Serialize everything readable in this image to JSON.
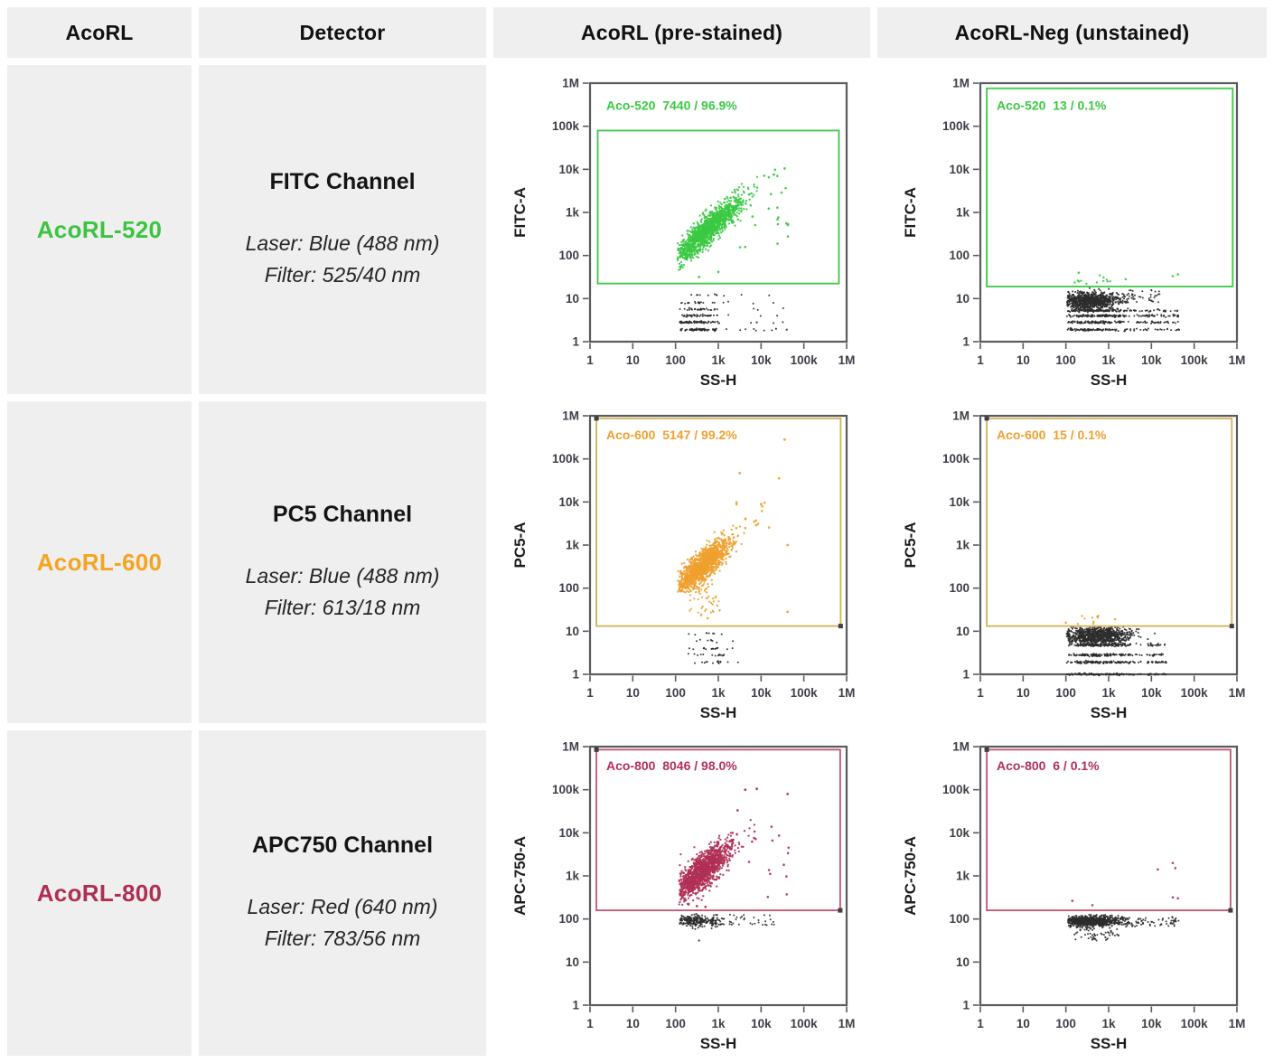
{
  "table": {
    "headers": [
      {
        "label": "AcoRL"
      },
      {
        "label": "Detector"
      },
      {
        "label": "AcoRL (pre-stained)"
      },
      {
        "label": "AcoRL-Neg (unstained)"
      }
    ],
    "rows": [
      {
        "name": "AcoRL-520",
        "color": "#3cc441",
        "channel": "FITC Channel",
        "laser": "Laser: Blue (488 nm)",
        "filter": "Filter: 525/40 nm"
      },
      {
        "name": "AcoRL-600",
        "color": "#f5a41f",
        "channel": "PC5 Channel",
        "laser": "Laser: Blue (488 nm)",
        "filter": "Filter: 613/18 nm"
      },
      {
        "name": "AcoRL-800",
        "color": "#ae2f54",
        "channel": "APC750 Channel",
        "laser": "Laser: Red (640 nm)",
        "filter": "Filter: 783/56 nm"
      }
    ]
  },
  "colors": {
    "green": "#3bc943",
    "orange": "#f0a02e",
    "gate_orange": "#d2b257",
    "crimson": "#b03056",
    "gate_crimson": "#c4546f",
    "black": "#2d2d2d",
    "plot_border": "#5a5b5e",
    "tick_text": "#3e3e48",
    "axis_title": "#1d1d1d",
    "cell_bg": "#efefef",
    "handle": "#3f3f3f"
  },
  "chart_data": [
    {
      "type": "scatter",
      "row": 0,
      "column": "pre-stained",
      "xlabel": "SS-H",
      "ylabel": "FITC-A",
      "scale": "log-log",
      "xlim": [
        1,
        1000000
      ],
      "ylim": [
        1,
        1000000
      ],
      "tick_labels": [
        "1",
        "10",
        "100",
        "1k",
        "10k",
        "100k",
        "1M"
      ],
      "gate": {
        "name": "Aco-520",
        "events": 7440,
        "percent": "96.9%",
        "text": "Aco-520  7440 / 96.9%",
        "color": "green",
        "label_color": "green",
        "handles": false,
        "x_log": [
          0.18,
          5.82
        ],
        "y_log": [
          1.35,
          4.9
        ],
        "label_pos_log": [
          0.38,
          5.38
        ]
      },
      "clusters": [
        {
          "type": "diag",
          "color": "green",
          "n": 1300,
          "cx": 2.75,
          "cy": 2.6,
          "sx": 0.4,
          "sy": 0.17,
          "slope": 0.88,
          "xmin": 2.05,
          "xmax": 4.05,
          "ymin": 1.5,
          "size": 1.15
        },
        {
          "type": "box",
          "color": "green",
          "n": 26,
          "x": [
            3.3,
            4.75
          ],
          "y": [
            2.0,
            4.05
          ],
          "size": 1.3
        },
        {
          "type": "points",
          "color": "green",
          "size": 1.4,
          "pts": [
            [
              4.55,
              4.02
            ],
            [
              4.3,
              3.88
            ],
            [
              3.0,
              1.62
            ],
            [
              2.55,
              1.5
            ]
          ]
        },
        {
          "type": "bands",
          "color": "black",
          "n": 260,
          "xc": 2.5,
          "xs": 0.3,
          "xmin": 2.1,
          "xmax": 3.5,
          "xtail": 4.55,
          "tailfrac": 0.07,
          "levels": [
            0.28,
            0.45,
            0.6,
            0.75,
            0.9,
            1.08
          ],
          "weights": [
            3,
            3,
            2.2,
            1.5,
            1,
            0.7
          ],
          "size": 1.0
        },
        {
          "type": "points",
          "color": "black",
          "size": 1.1,
          "pts": [
            [
              4.35,
              0.3
            ],
            [
              4.6,
              0.28
            ],
            [
              3.9,
              0.45
            ]
          ]
        }
      ]
    },
    {
      "type": "scatter",
      "row": 0,
      "column": "unstained",
      "xlabel": "SS-H",
      "ylabel": "FITC-A",
      "scale": "log-log",
      "xlim": [
        1,
        1000000
      ],
      "ylim": [
        1,
        1000000
      ],
      "tick_labels": [
        "1",
        "10",
        "100",
        "1k",
        "10k",
        "100k",
        "1M"
      ],
      "gate": {
        "name": "Aco-520",
        "events": 13,
        "percent": "0.1%",
        "text": "Aco-520  13 / 0.1%",
        "color": "green",
        "label_color": "green",
        "handles": false,
        "x_log": [
          0.15,
          5.9
        ],
        "y_log": [
          1.28,
          5.88
        ],
        "label_pos_log": [
          0.38,
          5.38
        ]
      },
      "clusters": [
        {
          "type": "hband",
          "color": "black",
          "n": 800,
          "xc": 2.55,
          "xs": 0.38,
          "xmin": 2.02,
          "xmax": 4.0,
          "yc": 0.95,
          "ys": 0.1,
          "ymin": 0.72,
          "ymax": 1.25,
          "size": 1.05
        },
        {
          "type": "bands",
          "color": "black",
          "n": 550,
          "xc": 2.7,
          "xs": 0.5,
          "xmin": 2.02,
          "xmax": 3.6,
          "xtail": 4.65,
          "tailfrac": 0.18,
          "levels": [
            0.28,
            0.45,
            0.6,
            0.72
          ],
          "weights": [
            1.2,
            1.3,
            1.5,
            1.5
          ],
          "size": 1.0
        },
        {
          "type": "box",
          "color": "black",
          "n": 40,
          "x": [
            3.3,
            4.2
          ],
          "y": [
            0.9,
            1.2
          ],
          "size": 1.0
        },
        {
          "type": "box",
          "color": "green",
          "n": 12,
          "x": [
            2.2,
            3.05
          ],
          "y": [
            1.32,
            1.56
          ],
          "size": 1.2
        },
        {
          "type": "points",
          "color": "green",
          "size": 1.3,
          "pts": [
            [
              4.5,
              1.52
            ],
            [
              4.62,
              1.56
            ],
            [
              3.4,
              1.45
            ],
            [
              2.3,
              1.6
            ]
          ]
        }
      ]
    },
    {
      "type": "scatter",
      "row": 1,
      "column": "pre-stained",
      "xlabel": "SS-H",
      "ylabel": "PC5-A",
      "scale": "log-log",
      "xlim": [
        1,
        1000000
      ],
      "ylim": [
        1,
        1000000
      ],
      "tick_labels": [
        "1",
        "10",
        "100",
        "1k",
        "10k",
        "100k",
        "1M"
      ],
      "gate": {
        "name": "Aco-600",
        "events": 5147,
        "percent": "99.2%",
        "text": "Aco-600  5147 / 99.2%",
        "color": "gate_orange",
        "label_color": "orange",
        "handles": true,
        "x_log": [
          0.15,
          5.86
        ],
        "y_log": [
          1.12,
          5.94
        ],
        "label_pos_log": [
          0.38,
          5.45
        ]
      },
      "clusters": [
        {
          "type": "diag",
          "color": "orange",
          "n": 1300,
          "cx": 2.62,
          "cy": 2.5,
          "sx": 0.32,
          "sy": 0.17,
          "slope": 0.8,
          "xmin": 2.05,
          "xmax": 3.95,
          "ymin": 1.9,
          "size": 1.15
        },
        {
          "type": "box",
          "color": "orange",
          "n": 45,
          "x": [
            2.3,
            3.05
          ],
          "y": [
            1.4,
            2.1
          ],
          "size": 1.1
        },
        {
          "type": "box",
          "color": "orange",
          "n": 14,
          "x": [
            3.1,
            4.2
          ],
          "y": [
            3.3,
            4.0
          ],
          "size": 1.3
        },
        {
          "type": "points",
          "color": "orange",
          "size": 1.4,
          "pts": [
            [
              4.55,
              5.45
            ],
            [
              3.5,
              4.67
            ],
            [
              4.42,
              4.55
            ],
            [
              4.62,
              3.0
            ],
            [
              2.6,
              1.38
            ],
            [
              2.75,
              1.3
            ],
            [
              4.0,
              3.95
            ],
            [
              4.62,
              1.45
            ]
          ]
        },
        {
          "type": "bands",
          "color": "black",
          "n": 60,
          "xc": 2.75,
          "xs": 0.3,
          "xmin": 2.3,
          "xmax": 3.7,
          "xtail": 3.7,
          "tailfrac": 0,
          "levels": [
            0.28,
            0.45,
            0.6,
            0.78,
            0.95
          ],
          "weights": [
            1,
            1.2,
            1.2,
            1,
            0.8
          ],
          "size": 1.0
        }
      ]
    },
    {
      "type": "scatter",
      "row": 1,
      "column": "unstained",
      "xlabel": "SS-H",
      "ylabel": "PC5-A",
      "scale": "log-log",
      "xlim": [
        1,
        1000000
      ],
      "ylim": [
        1,
        1000000
      ],
      "tick_labels": [
        "1",
        "10",
        "100",
        "1k",
        "10k",
        "100k",
        "1M"
      ],
      "gate": {
        "name": "Aco-600",
        "events": 15,
        "percent": "0.1%",
        "text": "Aco-600  15 / 0.1%",
        "color": "gate_orange",
        "label_color": "orange",
        "handles": true,
        "x_log": [
          0.15,
          5.88
        ],
        "y_log": [
          1.12,
          5.94
        ],
        "label_pos_log": [
          0.38,
          5.45
        ]
      },
      "clusters": [
        {
          "type": "hband",
          "color": "black",
          "n": 800,
          "xc": 2.7,
          "xs": 0.42,
          "xmin": 2.02,
          "xmax": 4.3,
          "yc": 0.9,
          "ys": 0.11,
          "ymin": 0.68,
          "ymax": 1.1,
          "size": 1.05
        },
        {
          "type": "bands",
          "color": "black",
          "n": 600,
          "xc": 2.8,
          "xs": 0.45,
          "xmin": 2.02,
          "xmax": 3.9,
          "xtail": 4.35,
          "tailfrac": 0.12,
          "levels": [
            0.0,
            0.28,
            0.45,
            0.68
          ],
          "weights": [
            0.9,
            1.2,
            1.2,
            1.4
          ],
          "size": 1.0
        },
        {
          "type": "box",
          "color": "orange",
          "n": 9,
          "x": [
            2.25,
            2.95
          ],
          "y": [
            1.15,
            1.45
          ],
          "size": 1.2
        },
        {
          "type": "points",
          "color": "orange",
          "size": 1.3,
          "pts": [
            [
              3.15,
              1.28
            ],
            [
              2.0,
              1.2
            ]
          ]
        }
      ]
    },
    {
      "type": "scatter",
      "row": 2,
      "column": "pre-stained",
      "xlabel": "SS-H",
      "ylabel": "APC-750-A",
      "scale": "log-log",
      "xlim": [
        1,
        1000000
      ],
      "ylim": [
        1,
        1000000
      ],
      "tick_labels": [
        "1",
        "10",
        "100",
        "1k",
        "10k",
        "100k",
        "1M"
      ],
      "gate": {
        "name": "Aco-800",
        "events": 8046,
        "percent": "98.0%",
        "text": "Aco-800  8046 / 98.0%",
        "color": "gate_crimson",
        "label_color": "crimson",
        "handles": true,
        "x_log": [
          0.15,
          5.85
        ],
        "y_log": [
          2.2,
          5.93
        ],
        "label_pos_log": [
          0.38,
          5.45
        ]
      },
      "clusters": [
        {
          "type": "diag",
          "color": "crimson",
          "n": 1300,
          "cx": 2.62,
          "cy": 3.1,
          "sx": 0.34,
          "sy": 0.2,
          "slope": 0.8,
          "xmin": 2.08,
          "xmax": 3.95,
          "ymin": 2.3,
          "size": 1.15
        },
        {
          "type": "box",
          "color": "crimson",
          "n": 16,
          "x": [
            3.5,
            4.7
          ],
          "y": [
            2.4,
            4.2
          ],
          "size": 1.3
        },
        {
          "type": "points",
          "color": "crimson",
          "size": 1.4,
          "pts": [
            [
              3.63,
              5.0
            ],
            [
              3.9,
              5.02
            ],
            [
              4.62,
              4.9
            ],
            [
              3.45,
              4.52
            ],
            [
              2.3,
              2.35
            ],
            [
              2.5,
              2.3
            ],
            [
              2.7,
              2.28
            ]
          ]
        },
        {
          "type": "hband",
          "color": "black",
          "n": 240,
          "xc": 2.55,
          "xs": 0.3,
          "xmin": 2.1,
          "xmax": 3.6,
          "yc": 1.95,
          "ys": 0.07,
          "ymin": 1.72,
          "ymax": 2.16,
          "size": 1.05
        },
        {
          "type": "box",
          "color": "black",
          "n": 30,
          "x": [
            3.2,
            4.35
          ],
          "y": [
            1.85,
            2.1
          ],
          "size": 1.0
        },
        {
          "type": "points",
          "color": "black",
          "size": 1.1,
          "pts": [
            [
              2.55,
              1.5
            ]
          ]
        }
      ]
    },
    {
      "type": "scatter",
      "row": 2,
      "column": "unstained",
      "xlabel": "SS-H",
      "ylabel": "APC-750-A",
      "scale": "log-log",
      "xlim": [
        1,
        1000000
      ],
      "ylim": [
        1,
        1000000
      ],
      "tick_labels": [
        "1",
        "10",
        "100",
        "1k",
        "10k",
        "100k",
        "1M"
      ],
      "gate": {
        "name": "Aco-800",
        "events": 6,
        "percent": "0.1%",
        "text": "Aco-800  6 / 0.1%",
        "color": "gate_crimson",
        "label_color": "crimson",
        "handles": true,
        "x_log": [
          0.15,
          5.85
        ],
        "y_log": [
          2.2,
          5.93
        ],
        "label_pos_log": [
          0.38,
          5.45
        ]
      },
      "clusters": [
        {
          "type": "hband",
          "color": "black",
          "n": 750,
          "xc": 2.6,
          "xs": 0.38,
          "xmin": 2.05,
          "xmax": 3.9,
          "yc": 1.95,
          "ys": 0.06,
          "ymin": 1.78,
          "ymax": 2.12,
          "size": 1.05
        },
        {
          "type": "box",
          "color": "black",
          "n": 60,
          "x": [
            3.4,
            4.65
          ],
          "y": [
            1.82,
            2.05
          ],
          "size": 1.0
        },
        {
          "type": "box",
          "color": "black",
          "n": 55,
          "x": [
            2.2,
            3.25
          ],
          "y": [
            1.5,
            1.8
          ],
          "size": 1.0
        },
        {
          "type": "points",
          "color": "crimson",
          "size": 1.3,
          "pts": [
            [
              4.15,
              3.15
            ],
            [
              4.5,
              3.3
            ],
            [
              4.56,
              3.18
            ],
            [
              4.5,
              2.5
            ],
            [
              2.15,
              2.42
            ],
            [
              2.62,
              2.32
            ],
            [
              4.62,
              2.48
            ]
          ]
        }
      ]
    }
  ]
}
